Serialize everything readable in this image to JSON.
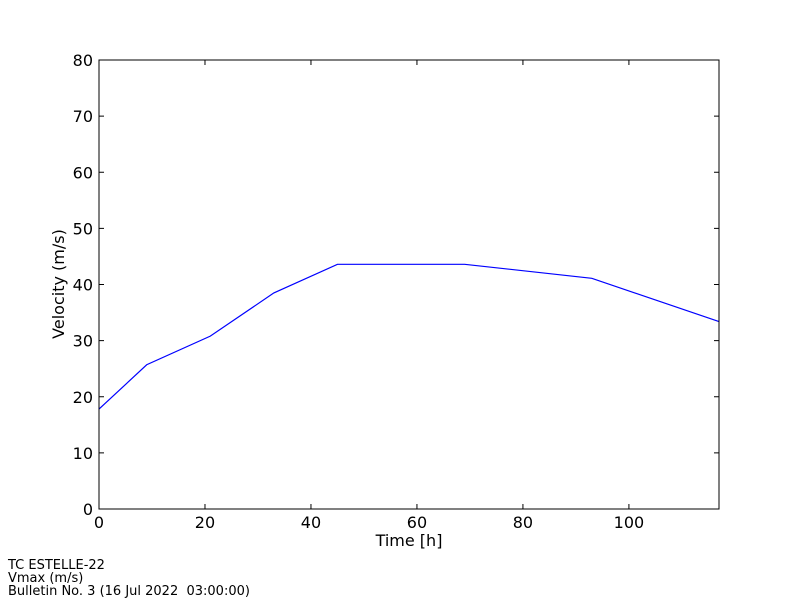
{
  "chart_data": {
    "type": "line",
    "x_label": "Time [h]",
    "y_label": "Velocity (m/s)",
    "x": [
      0,
      9,
      21,
      33,
      45,
      69,
      93,
      117
    ],
    "series": [
      {
        "color": "#0000ff",
        "values": [
          17.8,
          25.7,
          30.8,
          38.5,
          43.6,
          43.6,
          41.1,
          33.4
        ]
      }
    ],
    "xlim": [
      0,
      117
    ],
    "xticks": [
      0,
      20,
      40,
      60,
      80,
      100
    ],
    "ylim": [
      0,
      80
    ],
    "yticks": [
      0,
      10,
      20,
      30,
      40,
      50,
      60,
      70,
      80
    ],
    "annotations": [
      "TC ESTELLE-22",
      "Vmax (m/s)",
      "Bulletin No. 3 (16 Jul 2022  03:00:00)"
    ]
  }
}
